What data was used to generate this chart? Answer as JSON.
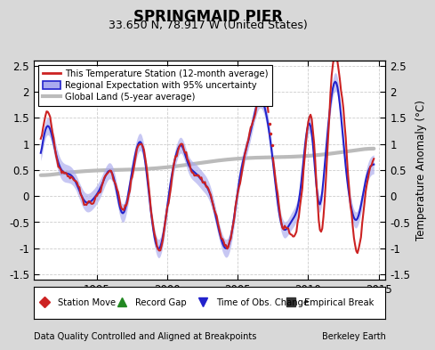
{
  "title": "SPRINGMAID PIER",
  "subtitle": "33.650 N, 78.917 W (United States)",
  "ylabel": "Temperature Anomaly (°C)",
  "footer_left": "Data Quality Controlled and Aligned at Breakpoints",
  "footer_right": "Berkeley Earth",
  "xlim": [
    1990.5,
    2015.5
  ],
  "ylim": [
    -1.6,
    2.6
  ],
  "yticks": [
    -1.5,
    -1.0,
    -0.5,
    0.0,
    0.5,
    1.0,
    1.5,
    2.0,
    2.5
  ],
  "xticks": [
    1995,
    2000,
    2005,
    2010,
    2015
  ],
  "bg_color": "#d8d8d8",
  "plot_bg_color": "#ffffff",
  "regional_color": "#2222cc",
  "regional_fill_color": "#aaaaee",
  "station_color": "#cc2222",
  "global_color": "#bbbbbb",
  "global_linewidth": 3.0,
  "regional_linewidth": 1.5,
  "station_linewidth": 1.5,
  "legend_items": [
    {
      "label": "This Temperature Station (12-month average)",
      "color": "#cc2222",
      "lw": 2
    },
    {
      "label": "Regional Expectation with 95% uncertainty",
      "color": "#2222cc",
      "fill": "#aaaaee"
    },
    {
      "label": "Global Land (5-year average)",
      "color": "#bbbbbb",
      "lw": 3.0
    }
  ],
  "bottom_legend": [
    {
      "label": "Station Move",
      "marker": "D",
      "color": "#cc2222"
    },
    {
      "label": "Record Gap",
      "marker": "^",
      "color": "#228822"
    },
    {
      "label": "Time of Obs. Change",
      "marker": "v",
      "color": "#2222cc"
    },
    {
      "label": "Empirical Break",
      "marker": "s",
      "color": "#333333"
    }
  ]
}
